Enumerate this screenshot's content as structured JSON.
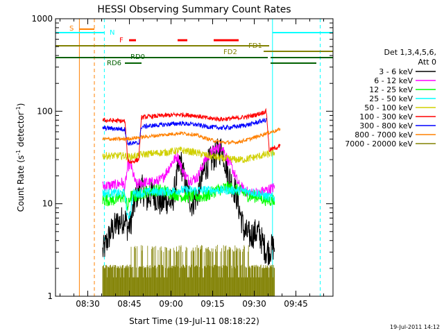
{
  "chart_data": {
    "type": "line",
    "title": "HESSI Observing Summary Count Rates",
    "xlabel": "Start Time (19-Jul-11 08:18:22)",
    "ylabel_main": "Count Rate (s",
    "ylabel_sup1": "-1",
    "ylabel_mid": " detector",
    "ylabel_sup2": "-1",
    "ylabel_end": ")",
    "yscale": "log",
    "xlim_minutes": [
      0,
      100
    ],
    "ylim": [
      1,
      1000
    ],
    "x_ticks": [
      {
        "label": "08:30",
        "minutes": 11.63
      },
      {
        "label": "08:45",
        "minutes": 26.63
      },
      {
        "label": "09:00",
        "minutes": 41.63
      },
      {
        "label": "09:15",
        "minutes": 56.63
      },
      {
        "label": "09:30",
        "minutes": 71.63
      },
      {
        "label": "09:45",
        "minutes": 86.63
      }
    ],
    "y_ticks": [
      {
        "label": "1",
        "value": 1
      },
      {
        "label": "10",
        "value": 10
      },
      {
        "label": "100",
        "value": 100
      },
      {
        "label": "1000",
        "value": 1000
      }
    ],
    "legend": {
      "header1": "Det 1,3,4,5,6,",
      "header2": "Att 0",
      "position": "right"
    },
    "series": [
      {
        "name": "3 - 6 keV",
        "color": "#000000",
        "noise": 0.16,
        "points": [
          [
            17,
            3
          ],
          [
            20,
            5
          ],
          [
            22,
            6
          ],
          [
            25,
            7
          ],
          [
            26,
            5.5
          ],
          [
            27,
            6
          ],
          [
            29,
            12
          ],
          [
            31,
            15
          ],
          [
            33,
            11
          ],
          [
            35,
            13
          ],
          [
            38,
            10
          ],
          [
            40,
            11
          ],
          [
            42,
            10
          ],
          [
            45,
            30
          ],
          [
            47,
            15
          ],
          [
            49,
            10
          ],
          [
            51,
            12
          ],
          [
            54,
            25
          ],
          [
            57,
            32
          ],
          [
            60,
            40
          ],
          [
            62,
            22
          ],
          [
            65,
            13
          ],
          [
            68,
            5
          ],
          [
            70,
            4.5
          ],
          [
            73,
            5
          ],
          [
            76,
            3
          ],
          [
            79,
            3.5
          ]
        ]
      },
      {
        "name": "6 - 12 keV",
        "color": "#ff00ff",
        "noise": 0.06,
        "points": [
          [
            17,
            15.5
          ],
          [
            22,
            16
          ],
          [
            24,
            17
          ],
          [
            25,
            15
          ],
          [
            26,
            25
          ],
          [
            27,
            27
          ],
          [
            29,
            16
          ],
          [
            31,
            17
          ],
          [
            35,
            17
          ],
          [
            38,
            18
          ],
          [
            40,
            22
          ],
          [
            42,
            28
          ],
          [
            44,
            33
          ],
          [
            46,
            22
          ],
          [
            48,
            18
          ],
          [
            51,
            19
          ],
          [
            54,
            30
          ],
          [
            57,
            38
          ],
          [
            60,
            42
          ],
          [
            62,
            30
          ],
          [
            64,
            23
          ],
          [
            66,
            16
          ],
          [
            68,
            14
          ],
          [
            70,
            13
          ],
          [
            73,
            13
          ],
          [
            76,
            14
          ],
          [
            79,
            15
          ]
        ]
      },
      {
        "name": "12 - 25 keV",
        "color": "#00ff00",
        "noise": 0.07,
        "points": [
          [
            17,
            11
          ],
          [
            22,
            11
          ],
          [
            24,
            12
          ],
          [
            25,
            12
          ],
          [
            26,
            9
          ],
          [
            27,
            12
          ],
          [
            29,
            12
          ],
          [
            31,
            13
          ],
          [
            35,
            14
          ],
          [
            38,
            14
          ],
          [
            42,
            13
          ],
          [
            46,
            12
          ],
          [
            50,
            12
          ],
          [
            54,
            12
          ],
          [
            58,
            14
          ],
          [
            62,
            15
          ],
          [
            66,
            14
          ],
          [
            70,
            12
          ],
          [
            73,
            12
          ],
          [
            76,
            11
          ],
          [
            79,
            11
          ]
        ]
      },
      {
        "name": "25 - 50 keV",
        "color": "#00ffff",
        "noise": 0.05,
        "points": [
          [
            17,
            13
          ],
          [
            25,
            13
          ],
          [
            26,
            7
          ],
          [
            27,
            8
          ],
          [
            28,
            13
          ],
          [
            30,
            13
          ],
          [
            35,
            13.5
          ],
          [
            40,
            13.5
          ],
          [
            45,
            14
          ],
          [
            50,
            14
          ],
          [
            55,
            14
          ],
          [
            60,
            14
          ],
          [
            65,
            14
          ],
          [
            70,
            13.5
          ],
          [
            73,
            13
          ],
          [
            76,
            12
          ],
          [
            79,
            11.5
          ]
        ]
      },
      {
        "name": "50 - 100 keV",
        "color": "#d0d000",
        "noise": 0.04,
        "points": [
          [
            17,
            33
          ],
          [
            25,
            33
          ],
          [
            27,
            32
          ],
          [
            31,
            34
          ],
          [
            35,
            35
          ],
          [
            40,
            36
          ],
          [
            45,
            38
          ],
          [
            50,
            36
          ],
          [
            55,
            33
          ],
          [
            60,
            31
          ],
          [
            65,
            30
          ],
          [
            68,
            30
          ],
          [
            72,
            32
          ],
          [
            76,
            34
          ],
          [
            78,
            35
          ],
          [
            79,
            36
          ]
        ]
      },
      {
        "name": "100 - 300 keV",
        "color": "#ff0000",
        "noise": 0.025,
        "points": [
          [
            17,
            80
          ],
          [
            25,
            78
          ],
          [
            26,
            30
          ],
          [
            27,
            28
          ],
          [
            30,
            30
          ],
          [
            31,
            86
          ],
          [
            35,
            88
          ],
          [
            40,
            90
          ],
          [
            45,
            92
          ],
          [
            50,
            90
          ],
          [
            55,
            84
          ],
          [
            60,
            82
          ],
          [
            65,
            84
          ],
          [
            70,
            88
          ],
          [
            74,
            95
          ],
          [
            76,
            100
          ],
          [
            77,
            38
          ],
          [
            79,
            40
          ],
          [
            81,
            42
          ]
        ]
      },
      {
        "name": "300 - 800 keV",
        "color": "#0000ff",
        "noise": 0.025,
        "points": [
          [
            17,
            66
          ],
          [
            25,
            64
          ],
          [
            26,
            45
          ],
          [
            30,
            45
          ],
          [
            31,
            68
          ],
          [
            35,
            70
          ],
          [
            40,
            72
          ],
          [
            45,
            74
          ],
          [
            50,
            72
          ],
          [
            55,
            68
          ],
          [
            60,
            66
          ],
          [
            65,
            68
          ],
          [
            70,
            72
          ],
          [
            74,
            78
          ],
          [
            76,
            80
          ]
        ]
      },
      {
        "name": "800 - 7000 keV",
        "color": "#ff8000",
        "noise": 0.02,
        "points": [
          [
            17,
            50
          ],
          [
            25,
            50
          ],
          [
            30,
            52
          ],
          [
            35,
            54
          ],
          [
            40,
            56
          ],
          [
            45,
            58
          ],
          [
            50,
            56
          ],
          [
            55,
            50
          ],
          [
            60,
            46
          ],
          [
            65,
            46
          ],
          [
            70,
            50
          ],
          [
            74,
            55
          ],
          [
            76,
            58
          ],
          [
            80,
            62
          ],
          [
            81,
            65
          ]
        ]
      },
      {
        "name": "7000 - 20000 keV",
        "color": "#808000",
        "noise": 0,
        "points": [
          [
            17,
            1.6
          ],
          [
            79,
            1.6
          ]
        ]
      }
    ],
    "flags": {
      "eclipse_label": "N",
      "saa_label": "S",
      "flare_label": "F",
      "fd1_label": "FD1",
      "fd2_label": "FD2",
      "rd0_label": "RD0",
      "rd6_label": "RD6"
    },
    "footer_date": "19-Jul-2011 14:12"
  }
}
